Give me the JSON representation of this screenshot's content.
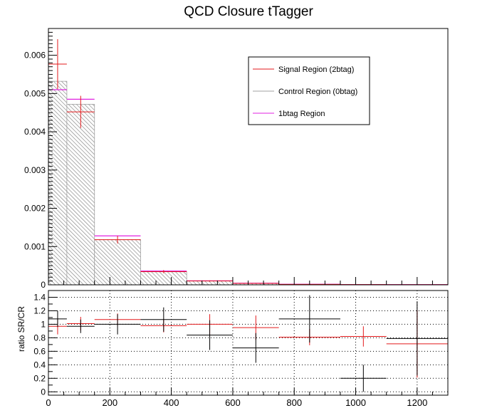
{
  "chart_data": [
    {
      "type": "histogram",
      "title": "QCD Closure tTagger",
      "xlabel": "",
      "ylabel": "",
      "xlim": [
        0,
        1300
      ],
      "ylim": [
        0,
        0.0067
      ],
      "yticks": [
        0,
        0.001,
        0.002,
        0.003,
        0.004,
        0.005,
        0.006
      ],
      "ytick_labels": [
        "0",
        "0.001",
        "0.002",
        "0.003",
        "0.004",
        "0.005",
        "0.006"
      ],
      "legend_placement": "top-right",
      "grid": false,
      "bin_edges": [
        0,
        60,
        150,
        300,
        450,
        600,
        750,
        950,
        1100,
        1300
      ],
      "series": [
        {
          "name": "Signal Region (2btag)",
          "color": "#e31a1c",
          "style": "points-with-errors",
          "values": [
            0.00577,
            0.00452,
            0.00118,
            0.000345,
            0.0001,
            3.8e-05,
            1.2e-05,
            6e-06,
            4e-06
          ],
          "errors": [
            0.00065,
            0.00042,
            0.0001,
            4e-05,
            1.5e-05,
            1e-05,
            4e-06,
            3e-06,
            2e-06
          ]
        },
        {
          "name": "Control Region (0btag)",
          "color": "#a0a0a0",
          "style": "hatched-fill",
          "values": [
            0.00532,
            0.00472,
            0.00118,
            0.00034,
            0.0001,
            4e-05,
            1.5e-05,
            7e-06,
            5e-06
          ]
        },
        {
          "name": "1btag Region",
          "color": "#e020e0",
          "style": "step-line",
          "values": [
            0.0051,
            0.00485,
            0.00128,
            0.00036,
            0.000105,
            4.2e-05,
            1.4e-05,
            7e-06,
            5e-06
          ]
        }
      ]
    },
    {
      "type": "ratio",
      "title": "",
      "xlabel": "",
      "ylabel": "ratio SR/CR",
      "xlim": [
        0,
        1300
      ],
      "ylim": [
        -0.05,
        1.5
      ],
      "xticks": [
        0,
        200,
        400,
        600,
        800,
        1000,
        1200
      ],
      "xtick_labels": [
        "0",
        "200",
        "400",
        "600",
        "800",
        "1000",
        "1200"
      ],
      "yticks": [
        0,
        0.2,
        0.4,
        0.6,
        0.8,
        1,
        1.2,
        1.4
      ],
      "ytick_labels": [
        "0",
        "0.2",
        "0.4",
        "0.6",
        "0.8",
        "1",
        "1.2",
        "1.4"
      ],
      "grid": true,
      "bin_edges": [
        0,
        60,
        150,
        300,
        450,
        600,
        750,
        950,
        1100,
        1300
      ],
      "series": [
        {
          "name": "",
          "color": "#e31a1c",
          "values": [
            0.97,
            1.01,
            1.07,
            0.98,
            1.0,
            0.95,
            0.81,
            0.82,
            0.71
          ],
          "errors": [
            0.12,
            0.1,
            0.09,
            0.1,
            0.15,
            0.18,
            0.12,
            0.15,
            0.5
          ]
        },
        {
          "name": "",
          "color": "#000000",
          "values": [
            1.08,
            0.97,
            1.0,
            1.07,
            0.84,
            0.65,
            1.08,
            0.2,
            0.79
          ],
          "errors": [
            0.12,
            0.1,
            0.15,
            0.18,
            0.22,
            0.22,
            0.35,
            0.2,
            0.55
          ]
        }
      ]
    }
  ]
}
